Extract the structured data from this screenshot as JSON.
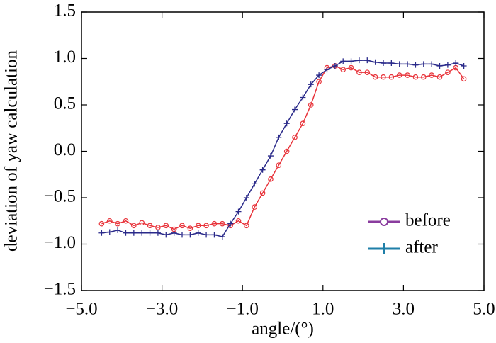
{
  "chart_data": {
    "type": "line",
    "xlabel": "angle/(°)",
    "ylabel": "deviation of yaw calculation",
    "x": [
      -4.5,
      -4.3,
      -4.1,
      -3.9,
      -3.7,
      -3.5,
      -3.3,
      -3.1,
      -2.9,
      -2.7,
      -2.5,
      -2.3,
      -2.1,
      -1.9,
      -1.7,
      -1.5,
      -1.3,
      -1.1,
      -0.9,
      -0.7,
      -0.5,
      -0.3,
      -0.1,
      0.1,
      0.3,
      0.5,
      0.7,
      0.9,
      1.1,
      1.3,
      1.5,
      1.7,
      1.9,
      2.1,
      2.3,
      2.5,
      2.7,
      2.9,
      3.1,
      3.3,
      3.5,
      3.7,
      3.9,
      4.1,
      4.3,
      4.5
    ],
    "series": [
      {
        "name": "before",
        "color": "#e8333a",
        "legend_color": "#8a3c9e",
        "marker": "circle",
        "values": [
          -0.78,
          -0.75,
          -0.78,
          -0.75,
          -0.8,
          -0.77,
          -0.8,
          -0.82,
          -0.8,
          -0.84,
          -0.8,
          -0.83,
          -0.8,
          -0.8,
          -0.78,
          -0.78,
          -0.8,
          -0.75,
          -0.8,
          -0.6,
          -0.45,
          -0.3,
          -0.15,
          0.0,
          0.15,
          0.3,
          0.5,
          0.75,
          0.9,
          0.92,
          0.88,
          0.9,
          0.85,
          0.85,
          0.8,
          0.8,
          0.8,
          0.82,
          0.82,
          0.8,
          0.8,
          0.82,
          0.8,
          0.85,
          0.9,
          0.78
        ]
      },
      {
        "name": "after",
        "color": "#2a2a8a",
        "legend_color": "#1f7fa8",
        "marker": "plus",
        "values": [
          -0.88,
          -0.87,
          -0.85,
          -0.88,
          -0.88,
          -0.88,
          -0.88,
          -0.88,
          -0.9,
          -0.88,
          -0.9,
          -0.9,
          -0.88,
          -0.9,
          -0.9,
          -0.92,
          -0.78,
          -0.65,
          -0.5,
          -0.35,
          -0.2,
          -0.05,
          0.15,
          0.3,
          0.45,
          0.58,
          0.72,
          0.82,
          0.88,
          0.92,
          0.97,
          0.97,
          0.98,
          0.98,
          0.96,
          0.95,
          0.95,
          0.94,
          0.94,
          0.93,
          0.94,
          0.94,
          0.92,
          0.93,
          0.95,
          0.92
        ]
      }
    ],
    "xlim": [
      -5,
      5
    ],
    "xticks": [
      {
        "value": -5,
        "label": "−5.0"
      },
      {
        "value": -3,
        "label": "−3.0"
      },
      {
        "value": -1,
        "label": "−1.0"
      },
      {
        "value": 1,
        "label": "1.0"
      },
      {
        "value": 3,
        "label": "3.0"
      },
      {
        "value": 5,
        "label": "5.0"
      }
    ],
    "ylim": [
      -1.5,
      1.5
    ],
    "yticks": [
      {
        "value": -1.5,
        "label": "−1.5"
      },
      {
        "value": -1,
        "label": "−1.0"
      },
      {
        "value": -0.5,
        "label": "−0.5"
      },
      {
        "value": 0,
        "label": "0.0"
      },
      0.5,
      {
        "value": 1,
        "label": "1.0"
      },
      1.5
    ],
    "legend": "lower right"
  }
}
